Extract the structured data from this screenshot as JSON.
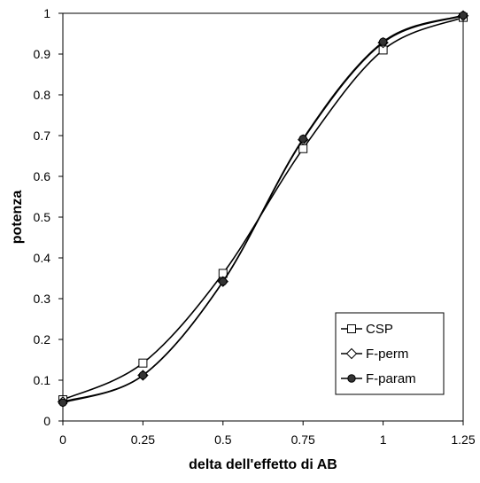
{
  "chart_data": {
    "type": "line",
    "title": "",
    "xlabel": "delta dell'effetto di AB",
    "ylabel": "potenza",
    "xlim": [
      0,
      1.25
    ],
    "ylim": [
      0,
      1
    ],
    "x_ticks": [
      "0",
      "0.25",
      "0.5",
      "0.75",
      "1",
      "1.25"
    ],
    "y_ticks": [
      "0",
      "0.1",
      "0.2",
      "0.3",
      "0.4",
      "0.5",
      "0.6",
      "0.7",
      "0.8",
      "0.9",
      "1"
    ],
    "grid": false,
    "legend_position": "bottom-right",
    "x": [
      0,
      0.25,
      0.5,
      0.75,
      1,
      1.25
    ],
    "series": [
      {
        "name": "CSP",
        "marker": "open-square",
        "color": "#000000",
        "values": [
          0.052,
          0.142,
          0.362,
          0.668,
          0.91,
          0.99
        ]
      },
      {
        "name": "F-perm",
        "marker": "open-diamond",
        "color": "#000000",
        "values": [
          0.047,
          0.112,
          0.342,
          0.69,
          0.928,
          0.994
        ]
      },
      {
        "name": "F-param",
        "marker": "filled-circle",
        "color": "#000000",
        "values": [
          0.045,
          0.112,
          0.342,
          0.692,
          0.93,
          0.995
        ]
      }
    ]
  }
}
